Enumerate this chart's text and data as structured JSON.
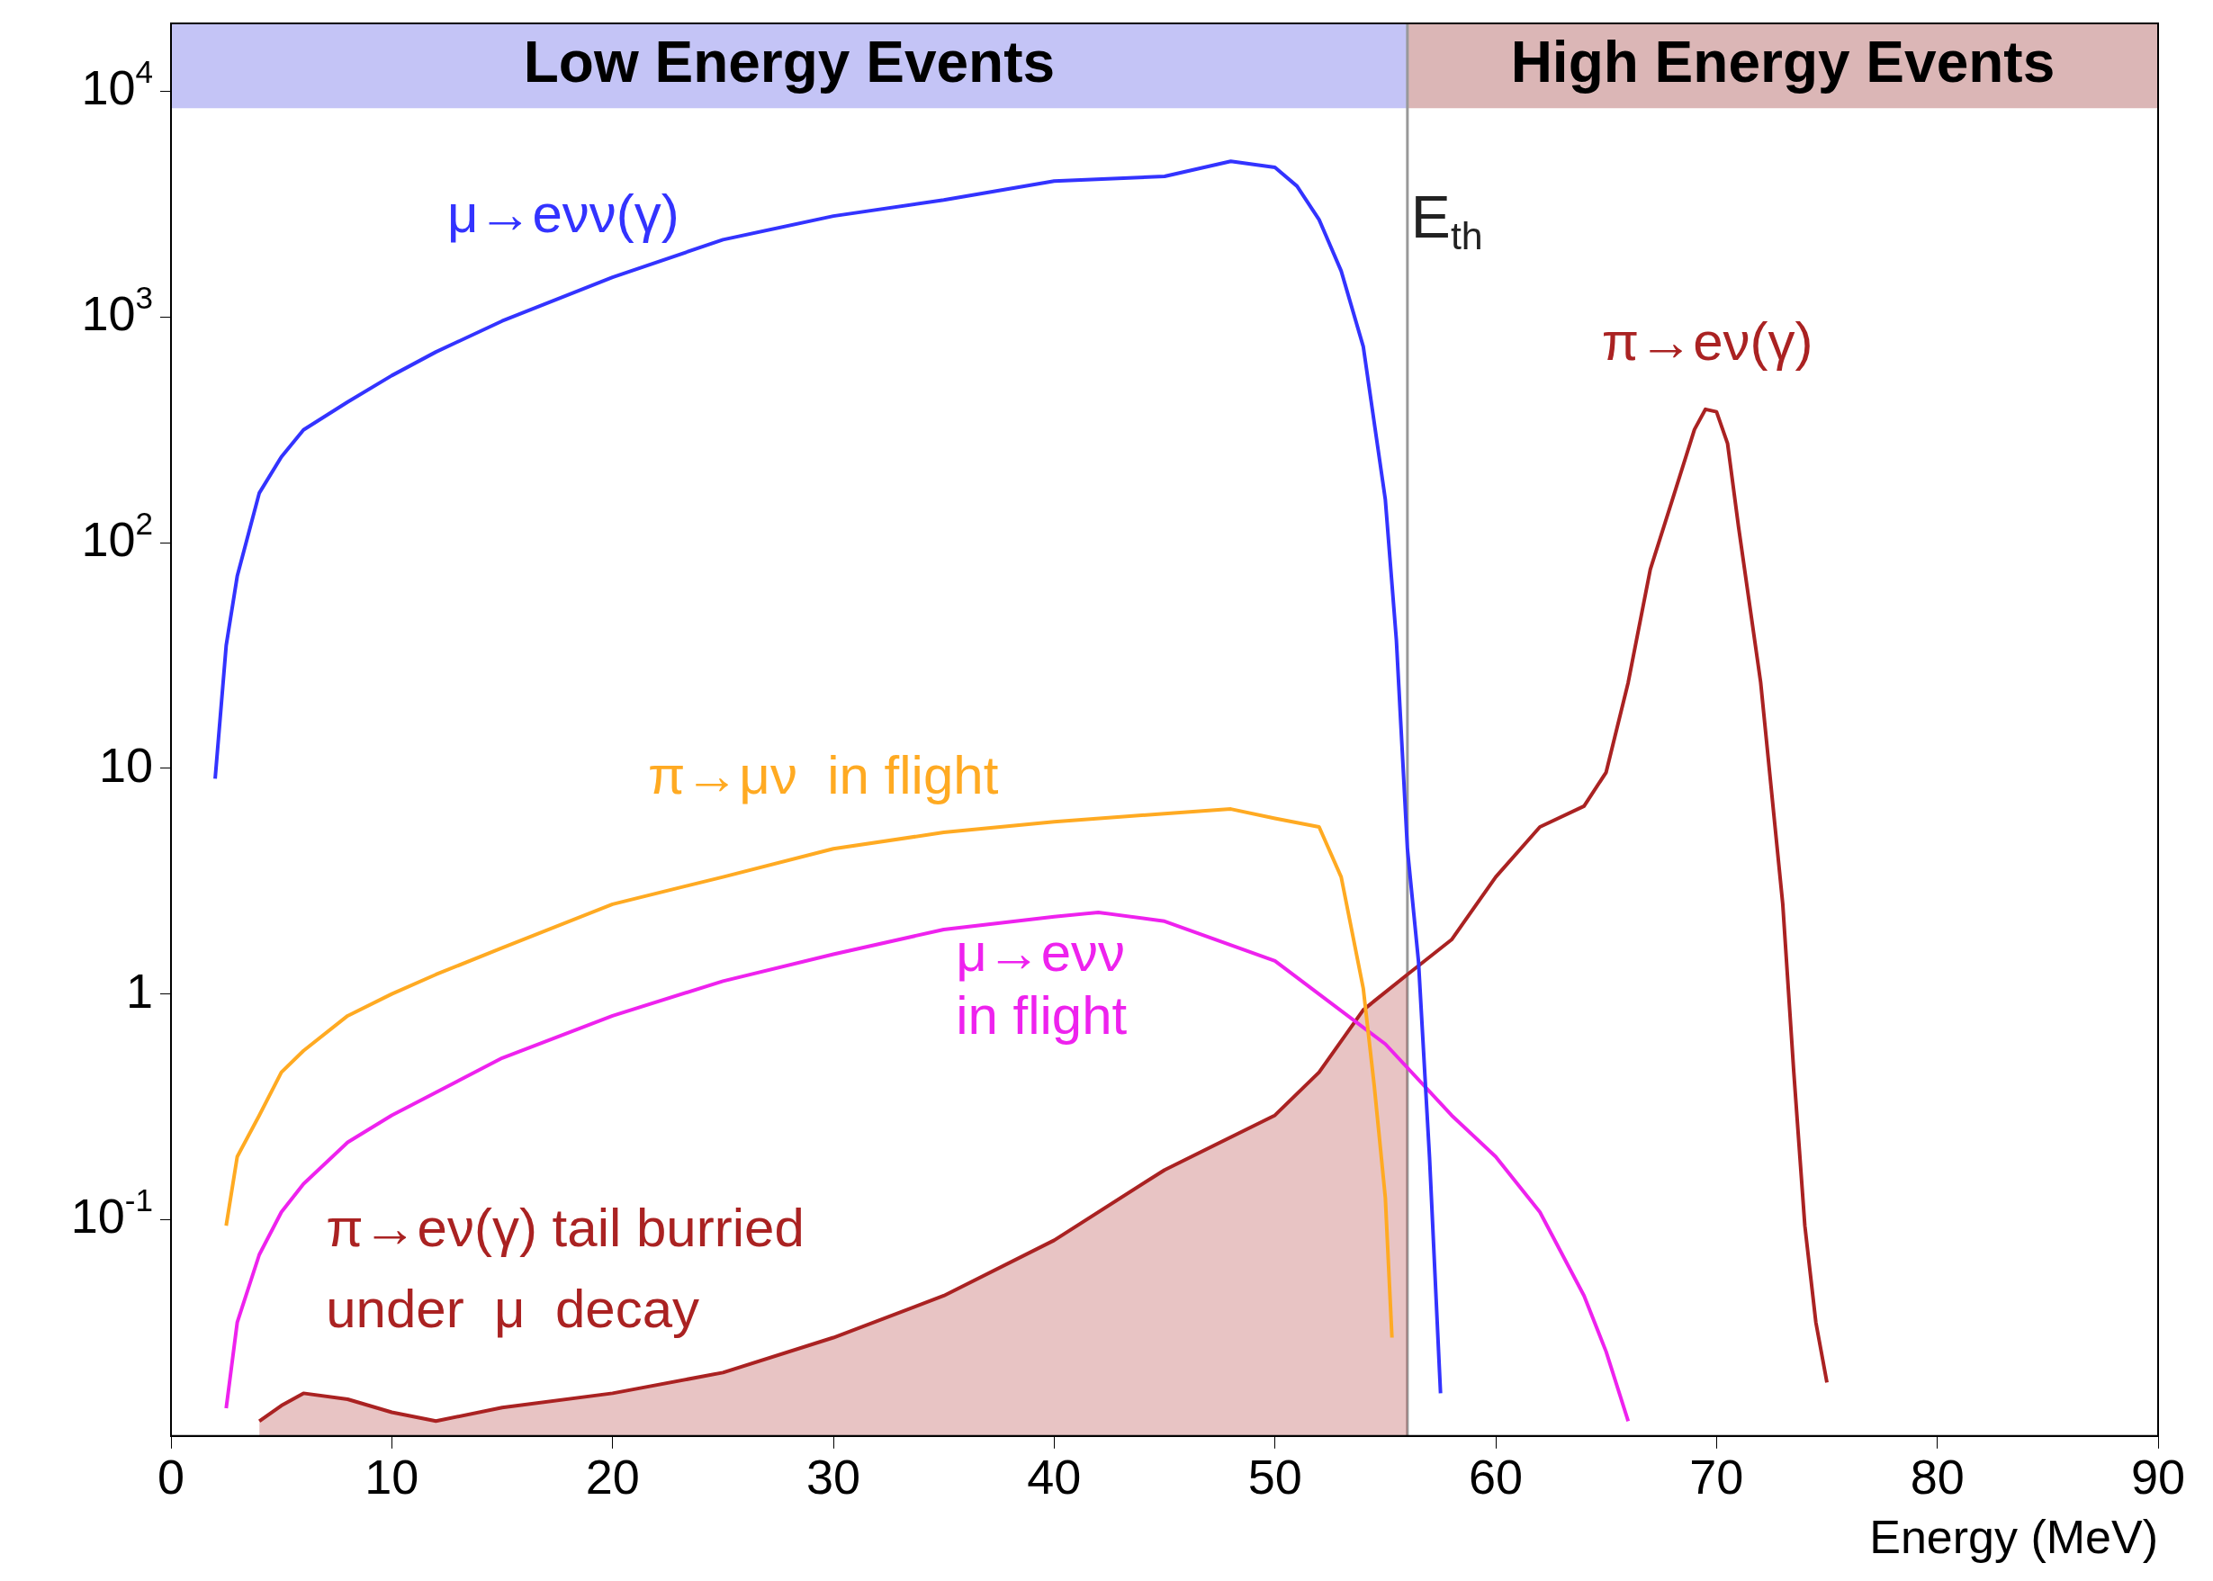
{
  "chart_data": {
    "type": "line",
    "xlabel": "Energy (MeV)",
    "log": true,
    "grid": false,
    "legend": false,
    "marker": "none",
    "line_style": "solid",
    "xlim": [
      0,
      90
    ],
    "xticks": [
      0,
      10,
      20,
      30,
      40,
      50,
      60,
      70,
      80,
      90
    ],
    "ylim": [
      0.011,
      20000
    ],
    "yticks": [
      {
        "value": 0.1,
        "label": "10$^{-1}$"
      },
      1,
      10,
      {
        "value": 100,
        "label": "10$^{2}$"
      },
      {
        "value": 1000,
        "label": "10$^{3}$"
      },
      {
        "value": 10000,
        "label": "10$^{4}$"
      }
    ],
    "series": [
      {
        "name": "μ→eνν(γ)",
        "color": "#3333ff",
        "x": [
          2,
          2.5,
          3,
          4,
          5,
          6,
          8,
          10,
          12,
          15,
          20,
          25,
          30,
          35,
          40,
          45,
          48,
          50,
          51,
          52,
          53,
          54,
          55,
          55.5,
          56,
          56.5,
          57,
          57.5
        ],
        "values": [
          9,
          35,
          71,
          166,
          240,
          316,
          420,
          550,
          700,
          960,
          1500,
          2200,
          2800,
          3300,
          4000,
          4200,
          4900,
          4600,
          3800,
          2700,
          1600,
          740,
          155,
          37,
          4.4,
          1.4,
          0.19,
          0.017
        ]
      },
      {
        "name": "π→μν  in flight",
        "color": "#ffaa22",
        "x": [
          2.5,
          3,
          4,
          5,
          6,
          8,
          10,
          12,
          15,
          20,
          25,
          30,
          35,
          40,
          45,
          48,
          50,
          52,
          53,
          54,
          54.5,
          55,
          55.3
        ],
        "values": [
          0.094,
          0.19,
          0.29,
          0.45,
          0.56,
          0.8,
          1.0,
          1.22,
          1.6,
          2.5,
          3.3,
          4.4,
          5.2,
          5.8,
          6.3,
          6.6,
          6.0,
          5.5,
          3.3,
          1.06,
          0.39,
          0.125,
          0.03
        ]
      },
      {
        "name": "μ→eνν\nin flight",
        "color": "#ee22ee",
        "x": [
          2.5,
          3,
          4,
          5,
          6,
          8,
          10,
          15,
          20,
          25,
          30,
          35,
          40,
          42,
          45,
          50,
          55,
          58,
          60,
          62,
          64,
          65,
          66
        ],
        "values": [
          0.0146,
          0.035,
          0.07,
          0.108,
          0.144,
          0.22,
          0.29,
          0.52,
          0.8,
          1.14,
          1.5,
          1.93,
          2.2,
          2.3,
          2.1,
          1.4,
          0.6,
          0.29,
          0.19,
          0.108,
          0.046,
          0.026,
          0.0128
        ]
      },
      {
        "type": "area",
        "color": "#aa2222",
        "x": [
          4,
          5,
          6,
          8,
          10,
          12,
          15,
          20,
          25,
          30,
          35,
          40,
          45,
          50,
          52,
          54,
          56
        ],
        "values": [
          0.0128,
          0.015,
          0.017,
          0.016,
          0.014,
          0.0128,
          0.0147,
          0.017,
          0.021,
          0.03,
          0.046,
          0.081,
          0.166,
          0.29,
          0.45,
          0.85,
          1.22
        ]
      },
      {
        "name": "π→eν(γ)",
        "color": "#aa2222",
        "x": [
          56,
          58,
          60,
          62,
          64,
          65,
          66,
          67,
          68,
          69,
          69.5,
          70,
          70.5,
          71,
          72,
          73,
          73.5,
          74,
          74.5,
          75
        ],
        "values": [
          1.22,
          1.74,
          3.3,
          5.5,
          6.8,
          9.6,
          24,
          76,
          155,
          317,
          390,
          380,
          275,
          117,
          24,
          2.5,
          0.45,
          0.094,
          0.035,
          0.019
        ]
      }
    ],
    "bands": [
      {
        "axis": "x",
        "from": 0,
        "to": 56,
        "label": "Low Energy Events",
        "color": "#c4c4f6"
      },
      {
        "axis": "x",
        "from": 56,
        "to": 90,
        "label": "High Energy Events",
        "color": "#dbb6b6"
      }
    ],
    "ref_lines": [
      {
        "axis": "x",
        "value": 56,
        "label": "E$_{th}$",
        "color": "#999999"
      }
    ],
    "annotations": [
      "π→eν(γ) tail burried\nunder  μ  decay"
    ]
  }
}
